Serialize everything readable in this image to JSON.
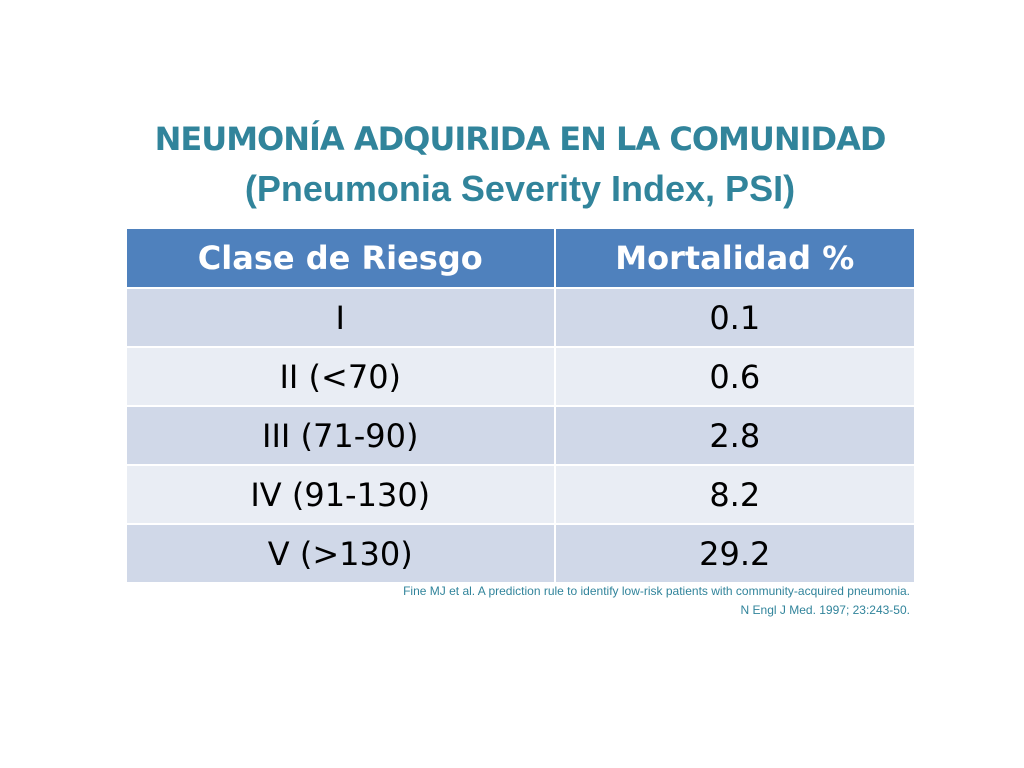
{
  "title": "NEUMONÍA ADQUIRIDA EN LA COMUNIDAD",
  "subtitle": "(Pneumonia Severity Index, PSI)",
  "table": {
    "header": [
      "Clase de Riesgo",
      "Mortalidad %"
    ],
    "rows": [
      [
        "I",
        "0.1"
      ],
      [
        "II (<70)",
        "0.6"
      ],
      [
        "III (71-90)",
        "2.8"
      ],
      [
        "IV (91-130)",
        "8.2"
      ],
      [
        "V (>130)",
        "29.2"
      ]
    ]
  },
  "reference": [
    "Fine MJ et al. A prediction rule to identify low-risk patients with community-acquired pneumonia.",
    "N Engl J Med. 1997; 23:243-50."
  ]
}
